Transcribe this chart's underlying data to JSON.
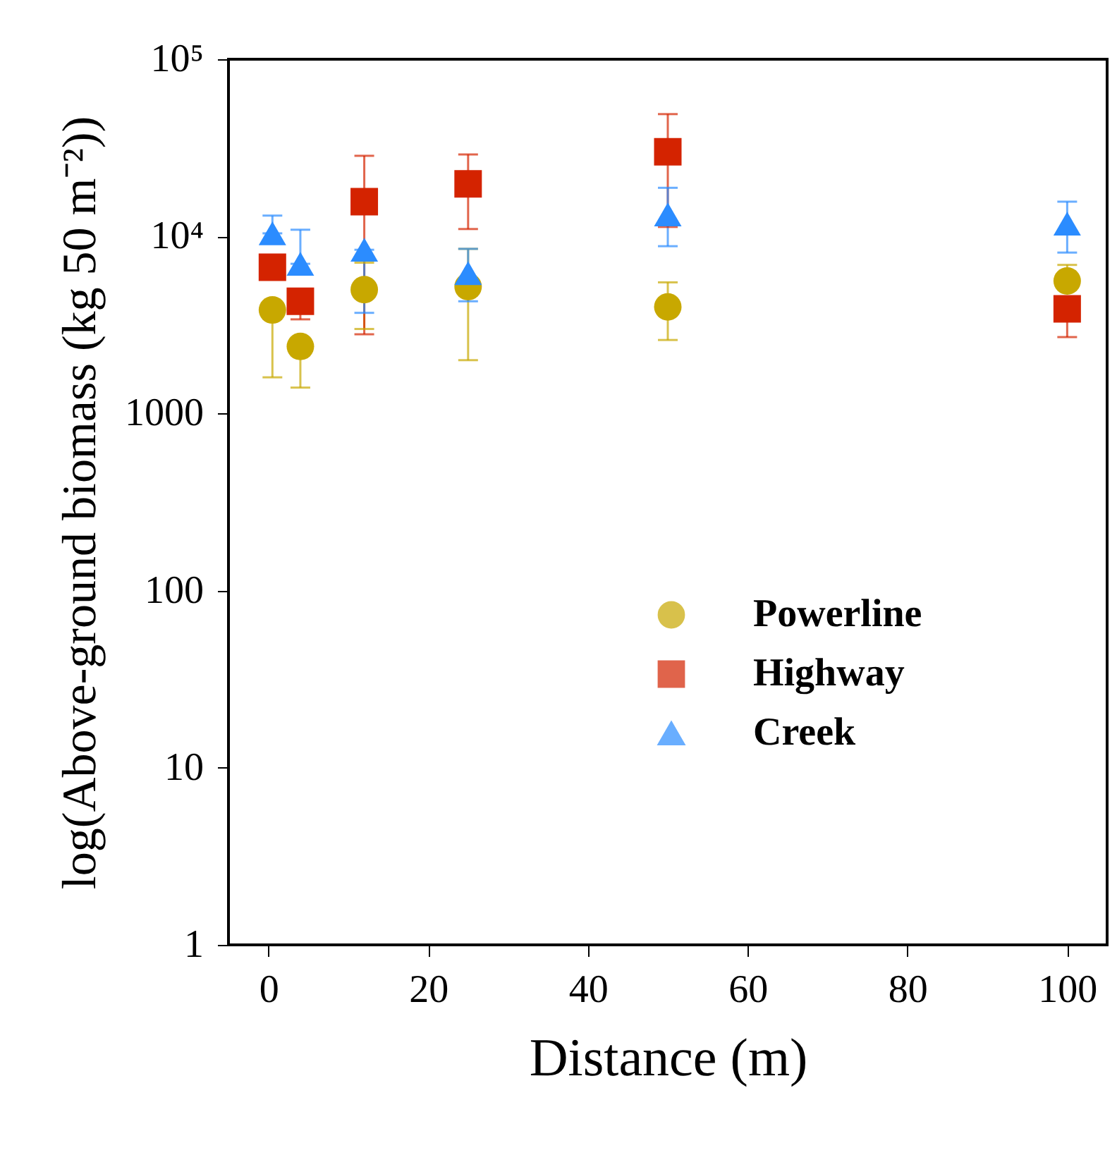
{
  "chart_data": {
    "type": "scatter",
    "xlabel": "Distance (m)",
    "ylabel": "log(Above-ground biomass (kg 50 m⁻²))",
    "x": [
      0.5,
      4,
      12,
      25,
      50,
      100
    ],
    "xlim": [
      -5,
      105
    ],
    "xticks": [
      0,
      20,
      40,
      60,
      80,
      100
    ],
    "log": "y",
    "ylim": [
      1,
      100000
    ],
    "yticks": [
      1,
      10,
      100,
      1000,
      {
        "value": 10000,
        "label": "10⁴"
      },
      {
        "value": 100000,
        "label": "10⁵"
      }
    ],
    "grid": false,
    "legend": "right",
    "series": [
      {
        "name": "Powerline",
        "color": "#c8a800",
        "marker": "circle",
        "values": [
          3840,
          2390,
          5000,
          5200,
          4000,
          5600
        ],
        "errors": [
          [
            1600,
            3840
          ],
          [
            1400,
            2390
          ],
          [
            3000,
            7100
          ],
          [
            2000,
            8500
          ],
          [
            2600,
            5500
          ],
          [
            5600,
            6900
          ]
        ]
      },
      {
        "name": "Highway",
        "color": "#d42300",
        "marker": "square",
        "values": [
          6700,
          4300,
          15700,
          19800,
          30000,
          3900
        ],
        "errors": [
          null,
          [
            3400,
            4300
          ],
          [
            2800,
            28500
          ],
          [
            11000,
            29000
          ],
          [
            11300,
            49000
          ],
          [
            2700,
            3900
          ]
        ]
      },
      {
        "name": "Creek",
        "color": "#2b8cff",
        "marker": "triangle",
        "values": [
          10400,
          7000,
          8400,
          6200,
          13300,
          11800
        ],
        "errors": [
          [
            10400,
            13100
          ],
          [
            7000,
            10900
          ],
          [
            3700,
            8400
          ],
          [
            4300,
            8500
          ],
          [
            8800,
            18800
          ],
          [
            8100,
            15700
          ]
        ]
      }
    ]
  }
}
